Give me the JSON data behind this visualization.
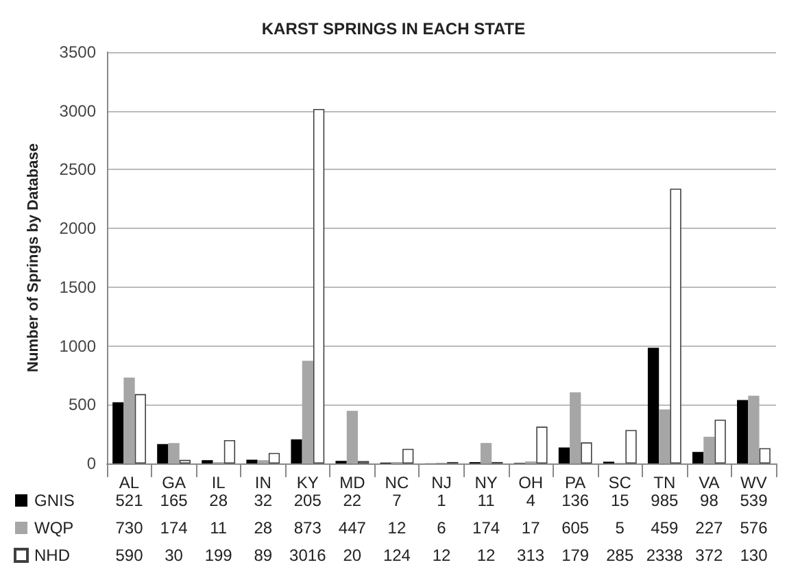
{
  "chart_data": {
    "type": "bar",
    "title": "KARST SPRINGS IN EACH STATE",
    "ylabel": "Number of Springs by Database",
    "categories": [
      "AL",
      "GA",
      "IL",
      "IN",
      "KY",
      "MD",
      "NC",
      "NJ",
      "NY",
      "OH",
      "PA",
      "SC",
      "TN",
      "VA",
      "WV"
    ],
    "series": [
      {
        "name": "GNIS",
        "color": "#000000",
        "values": [
          521,
          165,
          28,
          32,
          205,
          22,
          7,
          1,
          11,
          4,
          136,
          15,
          985,
          98,
          539
        ]
      },
      {
        "name": "WQP",
        "color": "#a6a6a6",
        "values": [
          730,
          174,
          11,
          28,
          873,
          447,
          12,
          6,
          174,
          17,
          605,
          5,
          459,
          227,
          576
        ]
      },
      {
        "name": "NHD",
        "color": "#ffffff",
        "values": [
          590,
          30,
          199,
          89,
          3016,
          20,
          124,
          12,
          12,
          313,
          179,
          285,
          2338,
          372,
          130
        ]
      }
    ],
    "ylim": [
      0,
      3500
    ],
    "yticks": [
      0,
      500,
      1000,
      1500,
      2000,
      2500,
      3000,
      3500
    ],
    "grid": "y",
    "legend": "bottom left",
    "data_labels": true
  }
}
